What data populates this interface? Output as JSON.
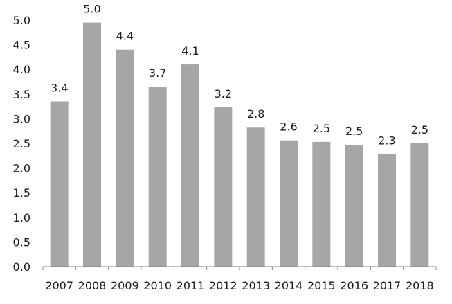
{
  "chart_data": {
    "type": "bar",
    "title": "",
    "xlabel": "",
    "ylabel": "",
    "categories": [
      "2007",
      "2008",
      "2009",
      "2010",
      "2011",
      "2012",
      "2013",
      "2014",
      "2015",
      "2016",
      "2017",
      "2018"
    ],
    "values": [
      3.35,
      4.95,
      4.4,
      3.65,
      4.1,
      3.23,
      2.82,
      2.56,
      2.53,
      2.47,
      2.28,
      2.5
    ],
    "data_labels": [
      "3.4",
      "5.0",
      "4.4",
      "3.7",
      "4.1",
      "3.2",
      "2.8",
      "2.6",
      "2.5",
      "2.5",
      "2.3",
      "2.5"
    ],
    "ylim": [
      0,
      5
    ],
    "yticks": [
      "0.0",
      "0.5",
      "1.0",
      "1.5",
      "2.0",
      "2.5",
      "3.0",
      "3.5",
      "4.0",
      "4.5",
      "5.0"
    ],
    "grid": false,
    "legend": "none",
    "colors": {
      "bar": "#a6a6a6",
      "axis": "#808080",
      "text": "#1a1a1a"
    }
  }
}
